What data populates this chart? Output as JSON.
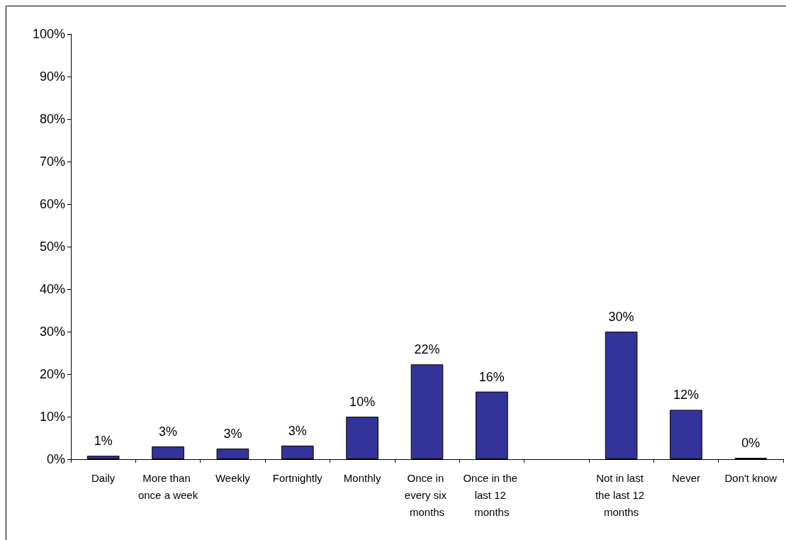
{
  "chart_data": {
    "type": "bar",
    "categories": [
      "Daily",
      "More than once a week",
      "Weekly",
      "Fortnightly",
      "Monthly",
      "Once in every six months",
      "Once in the last 12 months",
      null,
      "Not in last the last 12 months",
      "Never",
      "Don't know"
    ],
    "values": [
      0.8,
      3.0,
      2.5,
      3.2,
      10,
      22.3,
      15.9,
      null,
      30,
      11.6,
      0.3
    ],
    "value_labels": [
      "1%",
      "3%",
      "3%",
      "3%",
      "10%",
      "22%",
      "16%",
      null,
      "30%",
      "12%",
      "0%"
    ],
    "color": "#333399",
    "ylim": [
      0,
      100
    ],
    "yticks": [
      {
        "value": 0,
        "label": "0%"
      },
      {
        "value": 10,
        "label": "10%"
      },
      {
        "value": 20,
        "label": "20%"
      },
      {
        "value": 30,
        "label": "30%"
      },
      {
        "value": 40,
        "label": "40%"
      },
      {
        "value": 50,
        "label": "50%"
      },
      {
        "value": 60,
        "label": "60%"
      },
      {
        "value": 70,
        "label": "70%"
      },
      {
        "value": 80,
        "label": "80%"
      },
      {
        "value": 90,
        "label": "90%"
      },
      {
        "value": 100,
        "label": "100%"
      }
    ],
    "grid": false
  }
}
